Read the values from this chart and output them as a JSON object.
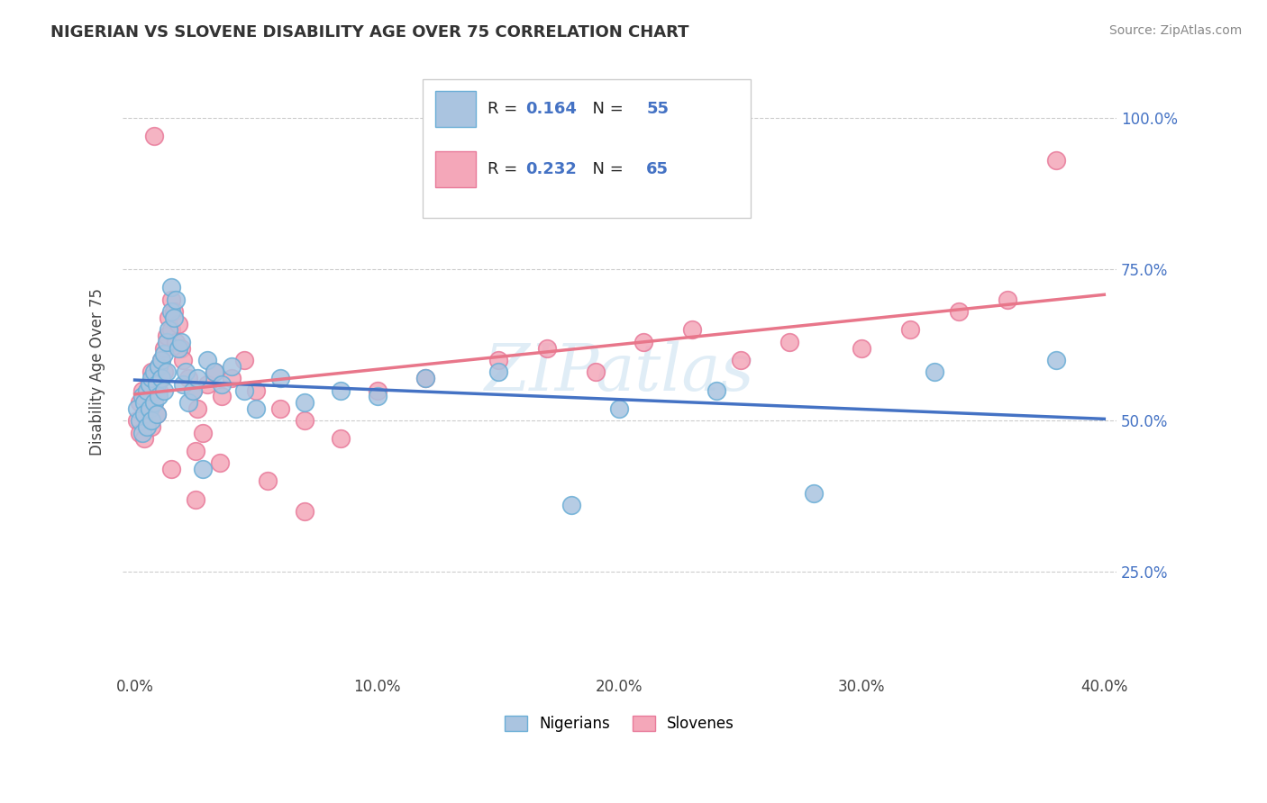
{
  "title": "NIGERIAN VS SLOVENE DISABILITY AGE OVER 75 CORRELATION CHART",
  "source": "Source: ZipAtlas.com",
  "ylabel": "Disability Age Over 75",
  "xlim": [
    -0.005,
    0.405
  ],
  "ylim": [
    0.08,
    1.08
  ],
  "ytick_labels": [
    "25.0%",
    "50.0%",
    "75.0%",
    "100.0%"
  ],
  "ytick_values": [
    0.25,
    0.5,
    0.75,
    1.0
  ],
  "xtick_labels": [
    "0.0%",
    "10.0%",
    "20.0%",
    "30.0%",
    "40.0%"
  ],
  "xtick_values": [
    0.0,
    0.1,
    0.2,
    0.3,
    0.4
  ],
  "nigerian_color": "#aac4e0",
  "slovene_color": "#f4a7b9",
  "nigerian_edge_color": "#6aaed6",
  "slovene_edge_color": "#e87a9a",
  "nigerian_line_color": "#4472c4",
  "slovene_line_color": "#e8768a",
  "nigerian_R": 0.164,
  "nigerian_N": 55,
  "slovene_R": 0.232,
  "slovene_N": 65,
  "legend_labels": [
    "Nigerians",
    "Slovenes"
  ],
  "watermark": "ZIPatlas",
  "nigerian_x": [
    0.001,
    0.002,
    0.003,
    0.003,
    0.004,
    0.004,
    0.005,
    0.005,
    0.006,
    0.006,
    0.007,
    0.007,
    0.008,
    0.008,
    0.009,
    0.009,
    0.01,
    0.01,
    0.011,
    0.011,
    0.012,
    0.012,
    0.013,
    0.013,
    0.014,
    0.015,
    0.015,
    0.016,
    0.017,
    0.018,
    0.019,
    0.02,
    0.021,
    0.022,
    0.024,
    0.026,
    0.028,
    0.03,
    0.033,
    0.036,
    0.04,
    0.045,
    0.05,
    0.06,
    0.07,
    0.085,
    0.1,
    0.12,
    0.15,
    0.18,
    0.2,
    0.24,
    0.28,
    0.33,
    0.38
  ],
  "nigerian_y": [
    0.52,
    0.5,
    0.54,
    0.48,
    0.53,
    0.51,
    0.55,
    0.49,
    0.56,
    0.52,
    0.57,
    0.5,
    0.58,
    0.53,
    0.56,
    0.51,
    0.59,
    0.54,
    0.6,
    0.57,
    0.61,
    0.55,
    0.63,
    0.58,
    0.65,
    0.72,
    0.68,
    0.67,
    0.7,
    0.62,
    0.63,
    0.56,
    0.58,
    0.53,
    0.55,
    0.57,
    0.42,
    0.6,
    0.58,
    0.56,
    0.59,
    0.55,
    0.52,
    0.57,
    0.53,
    0.55,
    0.54,
    0.57,
    0.58,
    0.36,
    0.52,
    0.55,
    0.38,
    0.58,
    0.6
  ],
  "slovene_x": [
    0.001,
    0.002,
    0.002,
    0.003,
    0.004,
    0.004,
    0.005,
    0.005,
    0.006,
    0.006,
    0.007,
    0.007,
    0.008,
    0.008,
    0.009,
    0.009,
    0.01,
    0.01,
    0.011,
    0.011,
    0.012,
    0.012,
    0.013,
    0.014,
    0.015,
    0.015,
    0.016,
    0.017,
    0.018,
    0.019,
    0.02,
    0.022,
    0.024,
    0.026,
    0.028,
    0.03,
    0.033,
    0.036,
    0.04,
    0.045,
    0.05,
    0.06,
    0.07,
    0.085,
    0.1,
    0.12,
    0.15,
    0.17,
    0.19,
    0.21,
    0.23,
    0.25,
    0.27,
    0.3,
    0.32,
    0.34,
    0.36,
    0.025,
    0.035,
    0.055,
    0.008,
    0.015,
    0.025,
    0.07,
    0.38
  ],
  "slovene_y": [
    0.5,
    0.53,
    0.48,
    0.55,
    0.51,
    0.47,
    0.54,
    0.5,
    0.56,
    0.52,
    0.58,
    0.49,
    0.57,
    0.53,
    0.56,
    0.51,
    0.59,
    0.55,
    0.6,
    0.57,
    0.62,
    0.58,
    0.64,
    0.67,
    0.7,
    0.65,
    0.68,
    0.63,
    0.66,
    0.62,
    0.6,
    0.57,
    0.55,
    0.52,
    0.48,
    0.56,
    0.58,
    0.54,
    0.57,
    0.6,
    0.55,
    0.52,
    0.5,
    0.47,
    0.55,
    0.57,
    0.6,
    0.62,
    0.58,
    0.63,
    0.65,
    0.6,
    0.63,
    0.62,
    0.65,
    0.68,
    0.7,
    0.45,
    0.43,
    0.4,
    0.97,
    0.42,
    0.37,
    0.35,
    0.93
  ]
}
